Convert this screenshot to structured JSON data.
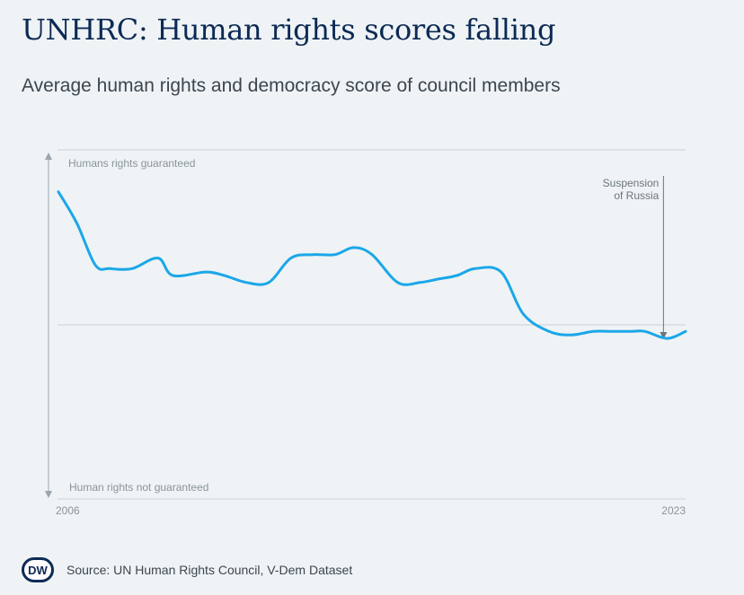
{
  "title": "UNHRC: Human rights scores falling",
  "subtitle": "Average human rights and democracy score of council members",
  "source": "Source: UN Human Rights Council, V-Dem Dataset",
  "logo_text": "DW",
  "colors": {
    "line": "#1ba7e8",
    "title": "#0c2a55",
    "grid": "#c9d0d5",
    "axis": "#9aa4ab",
    "annotation": "#6b757c",
    "label": "#8a949b"
  },
  "chart_data": {
    "type": "line",
    "x_start_label": "2006",
    "x_end_label": "2023",
    "y_top_label": "Humans rights guaranteed",
    "y_bottom_label": "Human rights not guaranteed",
    "ylim": [
      0,
      1
    ],
    "grid": true,
    "annotation": {
      "text_line1": "Suspension",
      "text_line2": "of Russia",
      "x": 2022.4
    },
    "series": [
      {
        "x": [
          2006,
          2006.5,
          2007,
          2007.4,
          2008,
          2008.7,
          2009.1,
          2010.0,
          2010.5,
          2011.1,
          2011.7,
          2012.3,
          2012.9,
          2013.5,
          2014.0,
          2014.5,
          2015.2,
          2015.8,
          2016.3,
          2016.8,
          2017.3,
          2018.0,
          2018.6,
          2019.3,
          2019.9,
          2020.5,
          2021.0,
          2021.5,
          2021.9,
          2022.5,
          2023
        ],
        "values": [
          0.88,
          0.79,
          0.67,
          0.66,
          0.66,
          0.69,
          0.64,
          0.65,
          0.64,
          0.62,
          0.62,
          0.69,
          0.7,
          0.7,
          0.72,
          0.7,
          0.62,
          0.62,
          0.63,
          0.64,
          0.66,
          0.65,
          0.53,
          0.48,
          0.47,
          0.48,
          0.48,
          0.48,
          0.48,
          0.46,
          0.48
        ]
      }
    ]
  }
}
